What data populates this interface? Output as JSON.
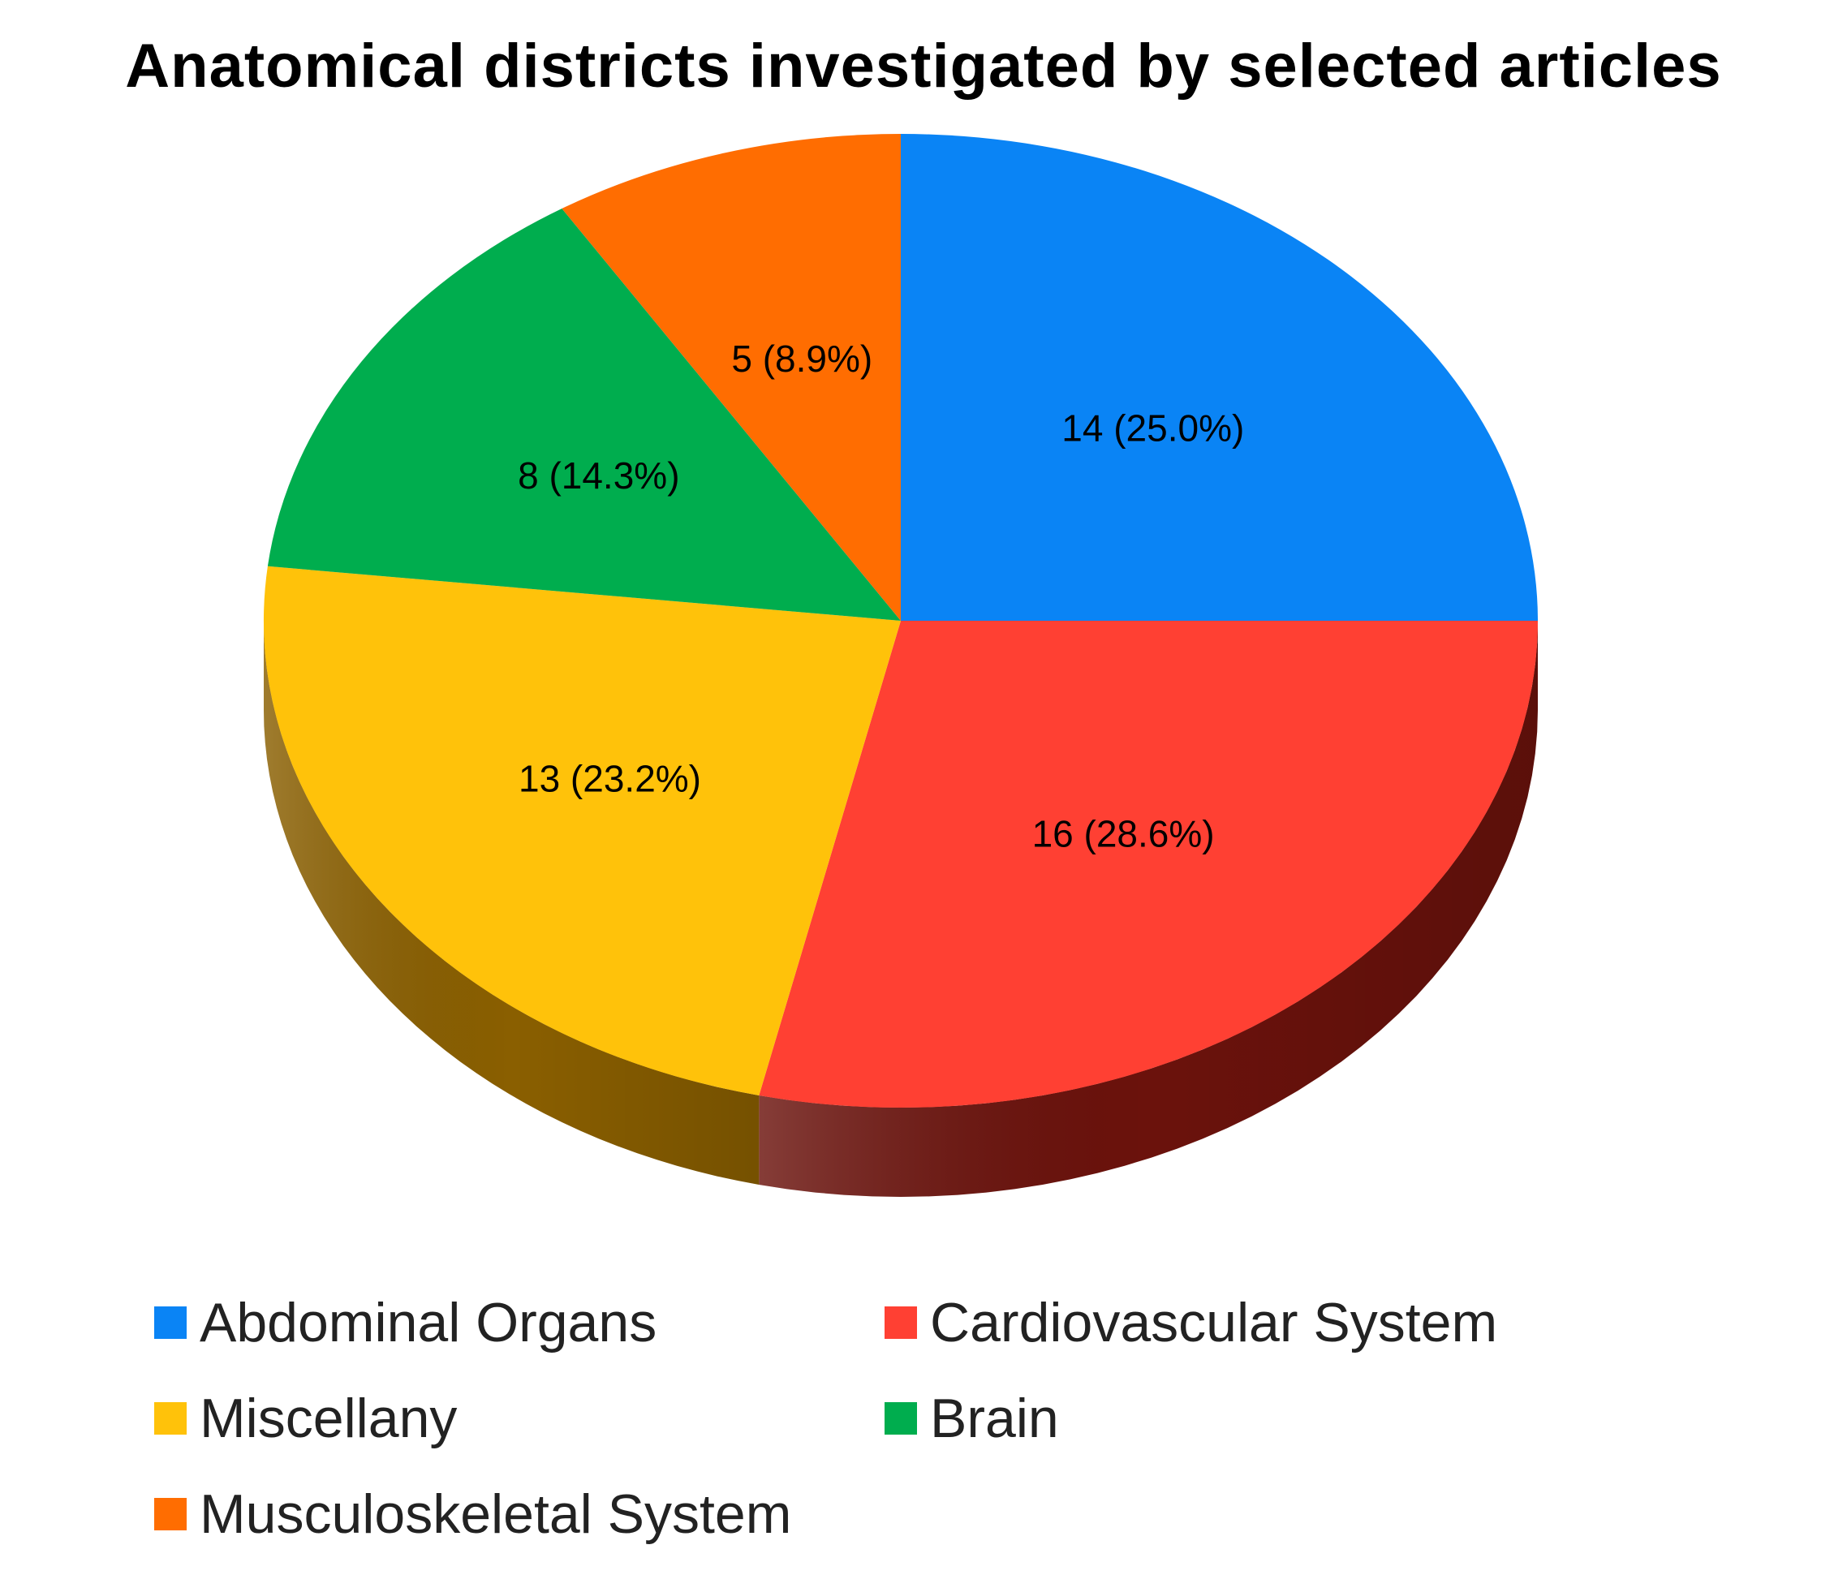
{
  "chart_data": {
    "type": "pie",
    "title": "Anatomical districts investigated by selected articles",
    "slices": [
      {
        "name": "Abdominal Organs",
        "value": 14,
        "label": "14 (25.0%)",
        "color": "#0a84f5",
        "side_color": "#044a8a"
      },
      {
        "name": "Cardiovascular System",
        "value": 16,
        "label": "16 (28.6%)",
        "color": "#ff4033",
        "side_color": "#6b120c"
      },
      {
        "name": "Miscellany",
        "value": 13,
        "label": "13 (23.2%)",
        "color": "#ffc20a",
        "side_color": "#8a5f00"
      },
      {
        "name": "Brain",
        "value": 8,
        "label": "8 (14.3%)",
        "color": "#00ad4e",
        "side_color": "#004f22"
      },
      {
        "name": "Musculoskeletal System",
        "value": 5,
        "label": "5 (8.9%)",
        "color": "#ff6d01",
        "side_color": "#7a3300"
      }
    ],
    "legend_placement": "bottom",
    "style": "3d"
  }
}
